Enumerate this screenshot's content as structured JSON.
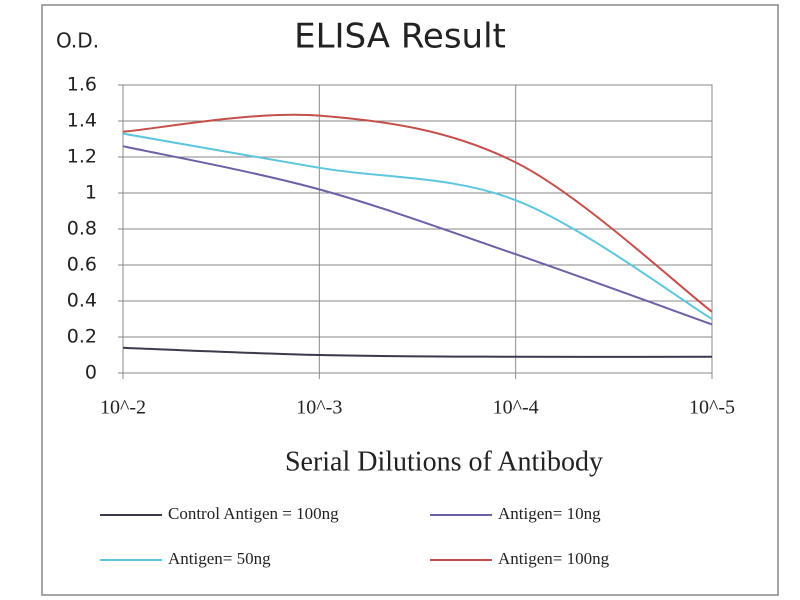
{
  "chart_data": {
    "type": "line",
    "title": "ELISA Result",
    "y_label": "O.D.",
    "x_label": "Serial Dilutions  of Antibody",
    "categories": [
      "10^-2",
      "10^-3",
      "10^-4",
      "10^-5"
    ],
    "series": [
      {
        "name": "Control Antigen = 100ng",
        "color": "#3b3a4c",
        "values": [
          0.14,
          0.1,
          0.09,
          0.09
        ]
      },
      {
        "name": "Antigen= 10ng",
        "color": "#6f5fa6",
        "values": [
          1.26,
          1.02,
          0.66,
          0.27
        ]
      },
      {
        "name": "Antigen= 50ng",
        "color": "#5cc6df",
        "values": [
          1.33,
          1.14,
          0.96,
          0.3
        ]
      },
      {
        "name": "Antigen= 100ng",
        "color": "#c4504c",
        "values": [
          1.34,
          1.43,
          1.17,
          0.34
        ]
      }
    ],
    "ylim": [
      0,
      1.6
    ],
    "yticks": [
      0,
      0.2,
      0.4,
      0.6,
      0.8,
      1,
      1.2,
      1.4,
      1.6
    ],
    "grid": true
  }
}
